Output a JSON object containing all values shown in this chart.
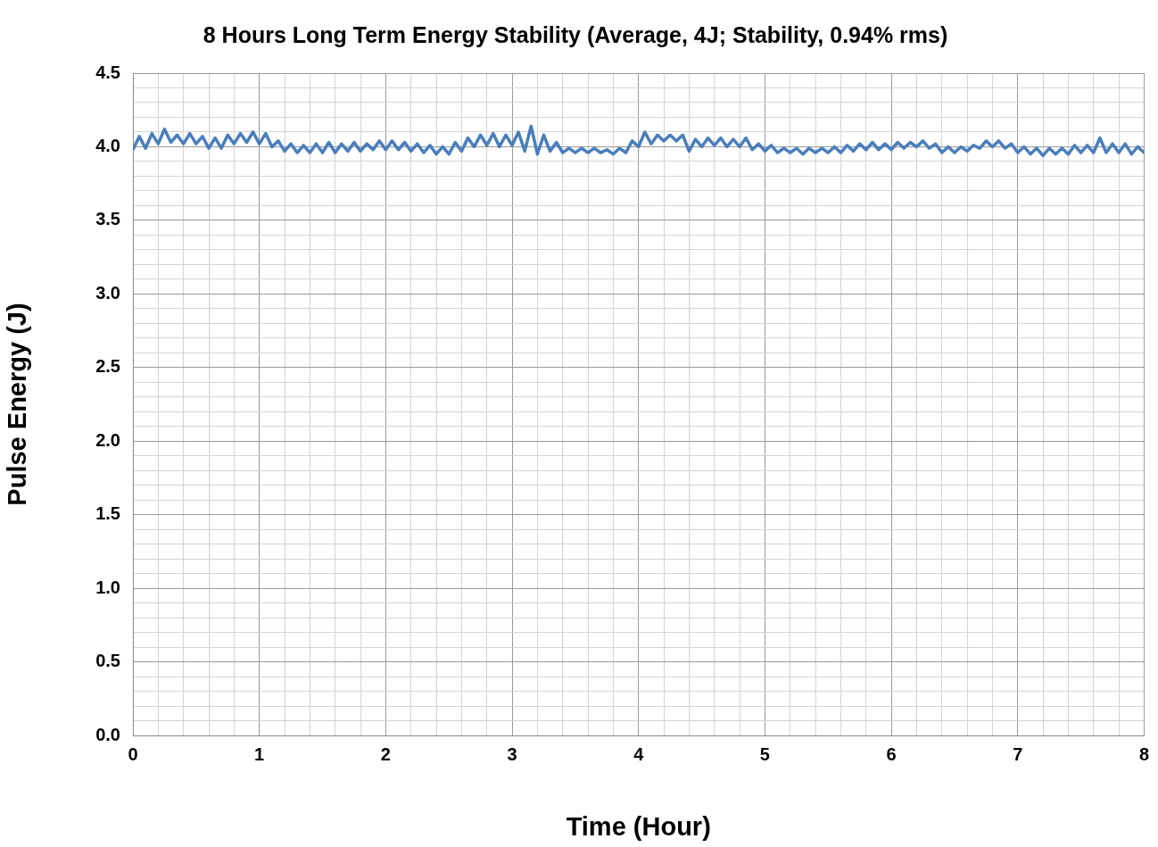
{
  "chart_data": {
    "type": "line",
    "title": "8 Hours Long Term Energy Stability (Average, 4J; Stability, 0.94% rms)",
    "xlabel": "Time (Hour)",
    "ylabel": "Pulse Energy (J)",
    "xlim": [
      0,
      8
    ],
    "ylim": [
      0,
      4.5
    ],
    "xticks": [
      0,
      {
        "value": 0.2,
        "label": null
      },
      {
        "value": 0.4,
        "label": null
      },
      {
        "value": 0.6,
        "label": null
      },
      {
        "value": 0.8,
        "label": null
      },
      1,
      {
        "value": 1.2,
        "label": null
      },
      {
        "value": 1.4,
        "label": null
      },
      {
        "value": 1.6,
        "label": null
      },
      {
        "value": 1.8,
        "label": null
      },
      2,
      {
        "value": 2.2,
        "label": null
      },
      {
        "value": 2.4,
        "label": null
      },
      {
        "value": 2.6,
        "label": null
      },
      {
        "value": 2.8,
        "label": null
      },
      3,
      {
        "value": 3.2,
        "label": null
      },
      {
        "value": 3.4,
        "label": null
      },
      {
        "value": 3.6,
        "label": null
      },
      {
        "value": 3.8,
        "label": null
      },
      4,
      {
        "value": 4.2,
        "label": null
      },
      {
        "value": 4.4,
        "label": null
      },
      {
        "value": 4.6,
        "label": null
      },
      {
        "value": 4.8,
        "label": null
      },
      5,
      {
        "value": 5.2,
        "label": null
      },
      {
        "value": 5.4,
        "label": null
      },
      {
        "value": 5.6,
        "label": null
      },
      {
        "value": 5.8,
        "label": null
      },
      6,
      {
        "value": 6.2,
        "label": null
      },
      {
        "value": 6.4,
        "label": null
      },
      {
        "value": 6.6,
        "label": null
      },
      {
        "value": 6.8,
        "label": null
      },
      7,
      {
        "value": 7.2,
        "label": null
      },
      {
        "value": 7.4,
        "label": null
      },
      {
        "value": 7.6,
        "label": null
      },
      {
        "value": 7.8,
        "label": null
      },
      8
    ],
    "yticks": [
      {
        "value": 0,
        "label": "0.0"
      },
      {
        "value": 0.1,
        "label": null
      },
      {
        "value": 0.2,
        "label": null
      },
      {
        "value": 0.3,
        "label": null
      },
      {
        "value": 0.4,
        "label": null
      },
      0.5,
      {
        "value": 0.6,
        "label": null
      },
      {
        "value": 0.7,
        "label": null
      },
      {
        "value": 0.8,
        "label": null
      },
      {
        "value": 0.9,
        "label": null
      },
      {
        "value": 1,
        "label": "1.0"
      },
      {
        "value": 1.1,
        "label": null
      },
      {
        "value": 1.2,
        "label": null
      },
      {
        "value": 1.3,
        "label": null
      },
      {
        "value": 1.4,
        "label": null
      },
      1.5,
      {
        "value": 1.6,
        "label": null
      },
      {
        "value": 1.7,
        "label": null
      },
      {
        "value": 1.8,
        "label": null
      },
      {
        "value": 1.9,
        "label": null
      },
      {
        "value": 2,
        "label": "2.0"
      },
      {
        "value": 2.1,
        "label": null
      },
      {
        "value": 2.2,
        "label": null
      },
      {
        "value": 2.3,
        "label": null
      },
      {
        "value": 2.4,
        "label": null
      },
      2.5,
      {
        "value": 2.6,
        "label": null
      },
      {
        "value": 2.7,
        "label": null
      },
      {
        "value": 2.8,
        "label": null
      },
      {
        "value": 2.9,
        "label": null
      },
      {
        "value": 3,
        "label": "3.0"
      },
      {
        "value": 3.1,
        "label": null
      },
      {
        "value": 3.2,
        "label": null
      },
      {
        "value": 3.3,
        "label": null
      },
      {
        "value": 3.4,
        "label": null
      },
      3.5,
      {
        "value": 3.6,
        "label": null
      },
      {
        "value": 3.7,
        "label": null
      },
      {
        "value": 3.8,
        "label": null
      },
      {
        "value": 3.9,
        "label": null
      },
      {
        "value": 4,
        "label": "4.0"
      },
      {
        "value": 4.1,
        "label": null
      },
      {
        "value": 4.2,
        "label": null
      },
      {
        "value": 4.3,
        "label": null
      },
      {
        "value": 4.4,
        "label": null
      },
      4.5
    ],
    "grid": true,
    "legend": false,
    "marker": "none",
    "line_style": "solid",
    "x": [
      0,
      0.05,
      0.1,
      0.15,
      0.2,
      0.25,
      0.3,
      0.35,
      0.4,
      0.45,
      0.5,
      0.55,
      0.6,
      0.65,
      0.7,
      0.75,
      0.8,
      0.85,
      0.9,
      0.95,
      1,
      1.05,
      1.1,
      1.15,
      1.2,
      1.25,
      1.3,
      1.35,
      1.4,
      1.45,
      1.5,
      1.55,
      1.6,
      1.65,
      1.7,
      1.75,
      1.8,
      1.85,
      1.9,
      1.95,
      2,
      2.05,
      2.1,
      2.15,
      2.2,
      2.25,
      2.3,
      2.35,
      2.4,
      2.45,
      2.5,
      2.55,
      2.6,
      2.65,
      2.7,
      2.75,
      2.8,
      2.85,
      2.9,
      2.95,
      3,
      3.05,
      3.1,
      3.15,
      3.2,
      3.25,
      3.3,
      3.35,
      3.4,
      3.45,
      3.5,
      3.55,
      3.6,
      3.65,
      3.7,
      3.75,
      3.8,
      3.85,
      3.9,
      3.95,
      4,
      4.05,
      4.1,
      4.15,
      4.2,
      4.25,
      4.3,
      4.35,
      4.4,
      4.45,
      4.5,
      4.55,
      4.6,
      4.65,
      4.7,
      4.75,
      4.8,
      4.85,
      4.9,
      4.95,
      5,
      5.05,
      5.1,
      5.15,
      5.2,
      5.25,
      5.3,
      5.35,
      5.4,
      5.45,
      5.5,
      5.55,
      5.6,
      5.65,
      5.7,
      5.75,
      5.8,
      5.85,
      5.9,
      5.95,
      6,
      6.05,
      6.1,
      6.15,
      6.2,
      6.25,
      6.3,
      6.35,
      6.4,
      6.45,
      6.5,
      6.55,
      6.6,
      6.65,
      6.7,
      6.75,
      6.8,
      6.85,
      6.9,
      6.95,
      7,
      7.05,
      7.1,
      7.15,
      7.2,
      7.25,
      7.3,
      7.35,
      7.4,
      7.45,
      7.5,
      7.55,
      7.6,
      7.65,
      7.7,
      7.75,
      7.8,
      7.85,
      7.9,
      7.95,
      8
    ],
    "series": [
      {
        "color": "#4a7ebb",
        "values": [
          3.98,
          4.07,
          3.99,
          4.09,
          4.02,
          4.12,
          4.03,
          4.08,
          4.02,
          4.09,
          4.02,
          4.07,
          3.99,
          4.06,
          3.99,
          4.08,
          4.02,
          4.09,
          4.03,
          4.1,
          4.02,
          4.09,
          4.0,
          4.04,
          3.97,
          4.02,
          3.96,
          4.01,
          3.96,
          4.02,
          3.96,
          4.03,
          3.96,
          4.02,
          3.97,
          4.03,
          3.97,
          4.02,
          3.98,
          4.04,
          3.98,
          4.04,
          3.98,
          4.03,
          3.97,
          4.02,
          3.96,
          4.01,
          3.95,
          4.0,
          3.95,
          4.03,
          3.97,
          4.06,
          4.0,
          4.08,
          4.01,
          4.09,
          4.0,
          4.08,
          4.01,
          4.1,
          3.97,
          4.14,
          3.95,
          4.08,
          3.97,
          4.03,
          3.96,
          3.99,
          3.96,
          3.99,
          3.96,
          3.99,
          3.96,
          3.98,
          3.95,
          3.99,
          3.96,
          4.04,
          4.0,
          4.1,
          4.02,
          4.08,
          4.04,
          4.08,
          4.04,
          4.08,
          3.97,
          4.05,
          4.0,
          4.06,
          4.01,
          4.06,
          4.0,
          4.05,
          4.0,
          4.06,
          3.98,
          4.02,
          3.97,
          4.01,
          3.96,
          3.99,
          3.96,
          3.99,
          3.95,
          3.99,
          3.96,
          3.99,
          3.96,
          4.0,
          3.96,
          4.01,
          3.97,
          4.02,
          3.98,
          4.03,
          3.98,
          4.02,
          3.98,
          4.03,
          3.99,
          4.03,
          4.0,
          4.04,
          3.99,
          4.02,
          3.96,
          4.0,
          3.96,
          4.0,
          3.97,
          4.01,
          3.99,
          4.04,
          4.0,
          4.04,
          3.99,
          4.02,
          3.96,
          4.0,
          3.95,
          3.99,
          3.94,
          3.99,
          3.95,
          3.99,
          3.95,
          4.01,
          3.96,
          4.01,
          3.96,
          4.06,
          3.96,
          4.02,
          3.96,
          4.02,
          3.95,
          4.0,
          3.96
        ]
      }
    ]
  }
}
